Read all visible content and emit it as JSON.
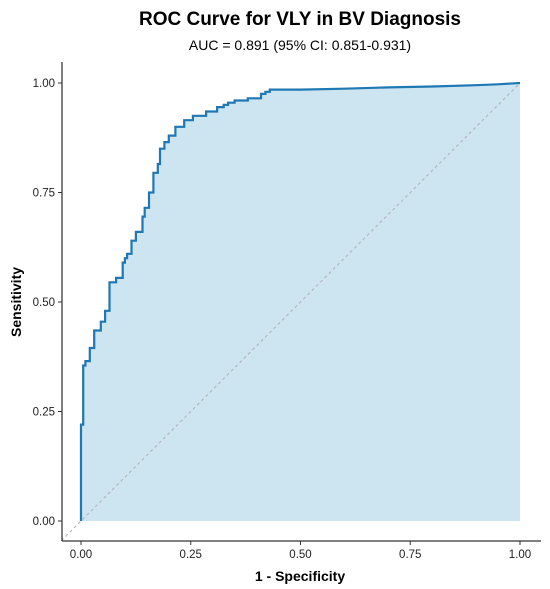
{
  "chart_data": {
    "type": "line",
    "title": "ROC Curve for VLY in BV Diagnosis",
    "subtitle": "AUC = 0.891 (95% CI: 0.851-0.931)",
    "xlabel": "1 - Specificity",
    "ylabel": "Sensitivity",
    "xlim": [
      0,
      1
    ],
    "ylim": [
      0,
      1
    ],
    "x_ticks": [
      "0.00",
      "0.25",
      "0.50",
      "0.75",
      "1.00"
    ],
    "y_ticks": [
      "0.00",
      "0.25",
      "0.50",
      "0.75",
      "1.00"
    ],
    "grid": false,
    "legend": "none",
    "fill_under_curve": true,
    "reference_line": "diagonal",
    "colors": {
      "curve": "#1f77b4",
      "fill": "#cde4f1",
      "reference": "#b0b0b0"
    },
    "series": [
      {
        "x": [
          0,
          0,
          0.005,
          0.005,
          0.01,
          0.01,
          0.02,
          0.02,
          0.03,
          0.03,
          0.045,
          0.045,
          0.055,
          0.055,
          0.065,
          0.065,
          0.08,
          0.08,
          0.095,
          0.095,
          0.1,
          0.1,
          0.105,
          0.105,
          0.115,
          0.115,
          0.125,
          0.125,
          0.14,
          0.14,
          0.145,
          0.145,
          0.155,
          0.155,
          0.165,
          0.165,
          0.175,
          0.175,
          0.18,
          0.18,
          0.19,
          0.19,
          0.2,
          0.2,
          0.215,
          0.215,
          0.235,
          0.235,
          0.255,
          0.255,
          0.285,
          0.285,
          0.31,
          0.31,
          0.325,
          0.325,
          0.335,
          0.335,
          0.35,
          0.35,
          0.38,
          0.38,
          0.41,
          0.41,
          0.42,
          0.42,
          0.43,
          0.43,
          0.5,
          0.6,
          0.7,
          0.8,
          0.9,
          0.95,
          1.0
        ],
        "y": [
          0,
          0.22,
          0.22,
          0.355,
          0.355,
          0.365,
          0.365,
          0.395,
          0.395,
          0.435,
          0.435,
          0.455,
          0.455,
          0.48,
          0.48,
          0.545,
          0.545,
          0.555,
          0.555,
          0.59,
          0.59,
          0.6,
          0.6,
          0.61,
          0.61,
          0.64,
          0.64,
          0.66,
          0.66,
          0.695,
          0.695,
          0.715,
          0.715,
          0.75,
          0.75,
          0.795,
          0.795,
          0.815,
          0.815,
          0.85,
          0.85,
          0.865,
          0.865,
          0.88,
          0.88,
          0.9,
          0.9,
          0.915,
          0.915,
          0.925,
          0.925,
          0.935,
          0.935,
          0.945,
          0.945,
          0.95,
          0.95,
          0.955,
          0.955,
          0.96,
          0.96,
          0.965,
          0.965,
          0.975,
          0.975,
          0.98,
          0.98,
          0.985,
          0.985,
          0.987,
          0.99,
          0.992,
          0.995,
          0.997,
          1.0
        ]
      }
    ]
  }
}
